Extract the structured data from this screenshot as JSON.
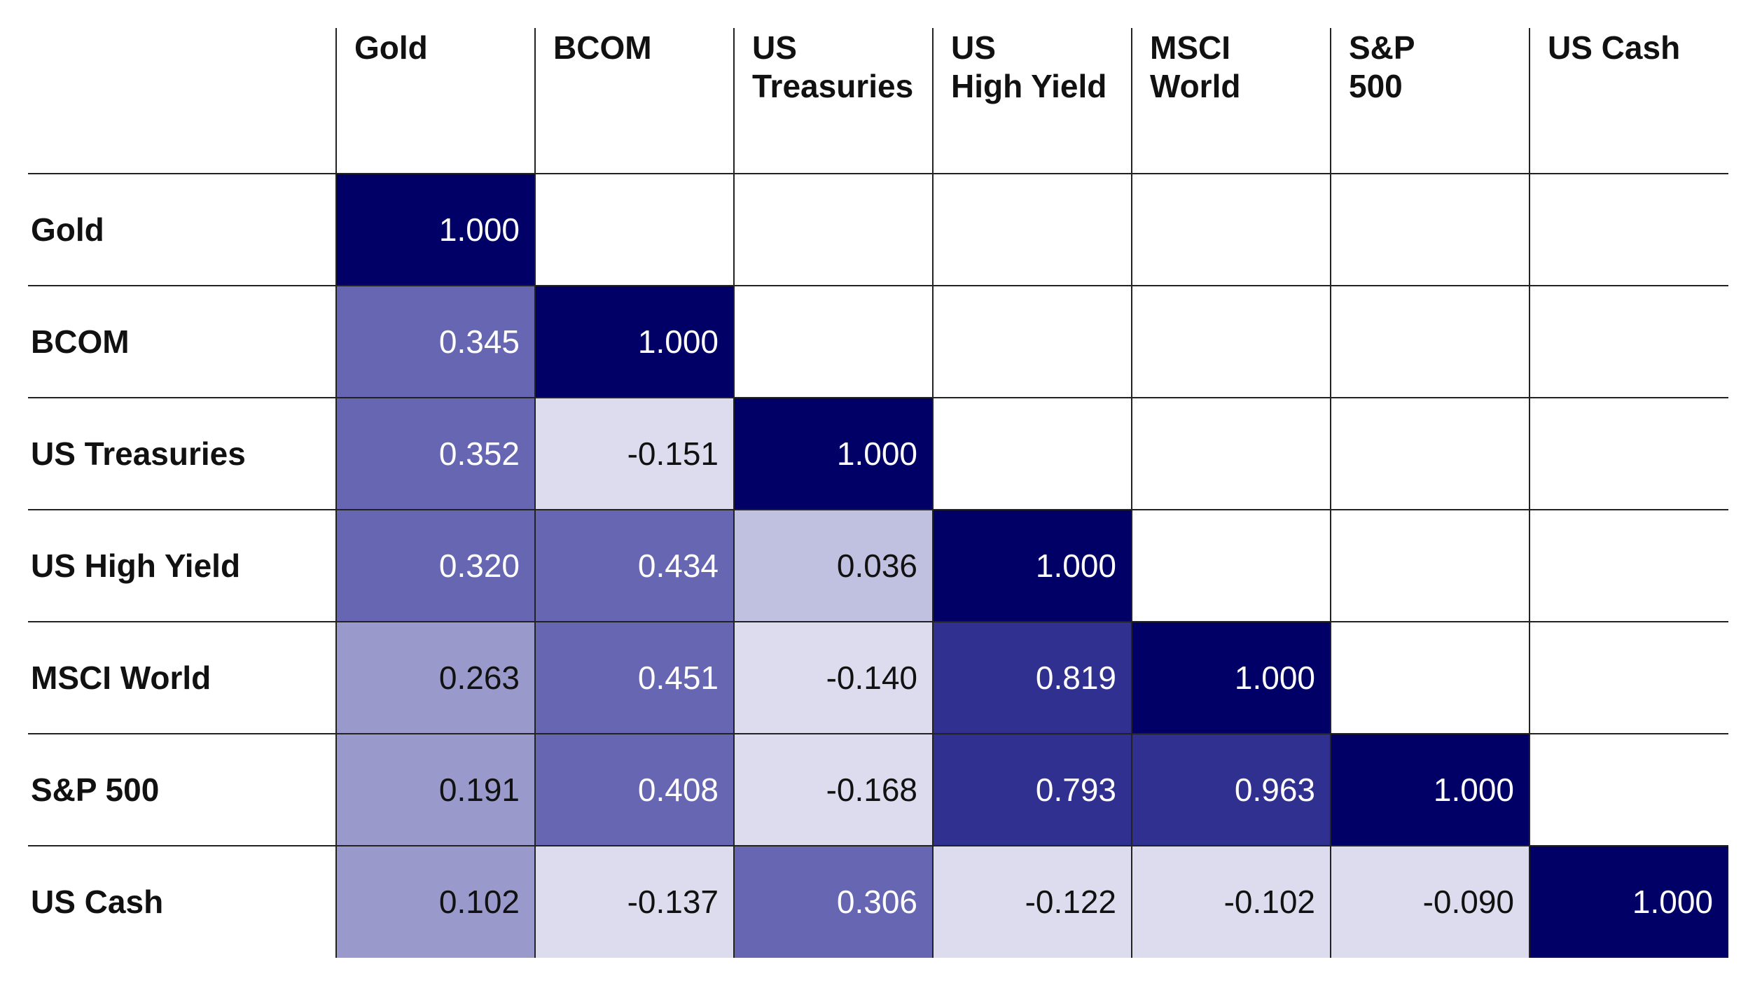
{
  "chart_data": {
    "type": "heatmap",
    "columns": [
      "Gold",
      "BCOM",
      "US Treasuries",
      "US High Yield",
      "MSCI World",
      "S&P 500",
      "US Cash"
    ],
    "column_labels": [
      [
        "Gold"
      ],
      [
        "BCOM"
      ],
      [
        "US",
        "Treasuries"
      ],
      [
        "US",
        "High Yield"
      ],
      [
        "MSCI",
        "World"
      ],
      [
        "S&P",
        "500"
      ],
      [
        "US Cash"
      ]
    ],
    "rows": [
      "Gold",
      "BCOM",
      "US Treasuries",
      "US High Yield",
      "MSCI World",
      "S&P 500",
      "US Cash"
    ],
    "values": [
      [
        "1.000",
        null,
        null,
        null,
        null,
        null,
        null
      ],
      [
        "0.345",
        "1.000",
        null,
        null,
        null,
        null,
        null
      ],
      [
        "0.352",
        "-0.151",
        "1.000",
        null,
        null,
        null,
        null
      ],
      [
        "0.320",
        "0.434",
        "0.036",
        "1.000",
        null,
        null,
        null
      ],
      [
        "0.263",
        "0.451",
        "-0.140",
        "0.819",
        "1.000",
        null,
        null
      ],
      [
        "0.191",
        "0.408",
        "-0.168",
        "0.793",
        "0.963",
        "1.000",
        null
      ],
      [
        "0.102",
        "-0.137",
        "0.306",
        "-0.122",
        "-0.102",
        "-0.090",
        "1.000"
      ]
    ],
    "color_scale": {
      "diagonal": "#000066",
      "very_high": "#303090",
      "medium": "#6666b2",
      "low": "#9999cc",
      "very_low": "#c0c0e0",
      "negative": "#dcdcee",
      "light_text": "#ffffff",
      "dark_text": "#111111"
    }
  }
}
